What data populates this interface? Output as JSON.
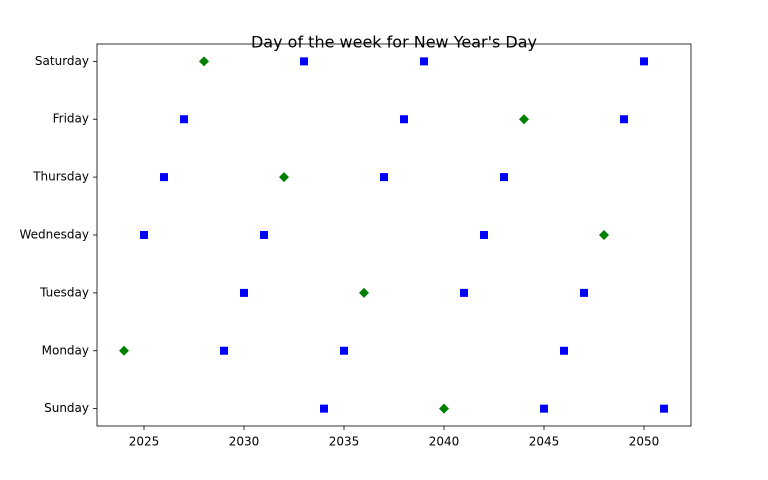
{
  "chart_data": {
    "type": "scatter",
    "title": "Day of the week for New Year's Day",
    "series": [
      {
        "color": "#008000",
        "marker": "diamond",
        "x": [
          2024,
          2028,
          2032,
          2036,
          2040,
          2044,
          2048
        ],
        "values": [
          1,
          6,
          4,
          2,
          0,
          5,
          3
        ]
      },
      {
        "color": "#0000ff",
        "marker": "square",
        "x": [
          2025,
          2026,
          2027,
          2029,
          2030,
          2031,
          2033,
          2034,
          2035,
          2037,
          2038,
          2039,
          2041,
          2042,
          2043,
          2045,
          2046,
          2047,
          2049,
          2050,
          2051
        ],
        "values": [
          3,
          4,
          5,
          1,
          2,
          3,
          6,
          0,
          1,
          4,
          5,
          6,
          2,
          3,
          4,
          0,
          1,
          2,
          5,
          6,
          0
        ]
      }
    ],
    "xlim": [
      2022.65,
      2052.35
    ],
    "xticks": [
      2025,
      2030,
      2035,
      2040,
      2045,
      2050
    ],
    "ylim": [
      -0.3,
      6.3
    ],
    "yticks": [
      {
        "value": 0,
        "label": "Sunday"
      },
      {
        "value": 1,
        "label": "Monday"
      },
      {
        "value": 2,
        "label": "Tuesday"
      },
      {
        "value": 3,
        "label": "Wednesday"
      },
      {
        "value": 4,
        "label": "Thursday"
      },
      {
        "value": 5,
        "label": "Friday"
      },
      {
        "value": 6,
        "label": "Saturday"
      }
    ],
    "grid": false
  }
}
